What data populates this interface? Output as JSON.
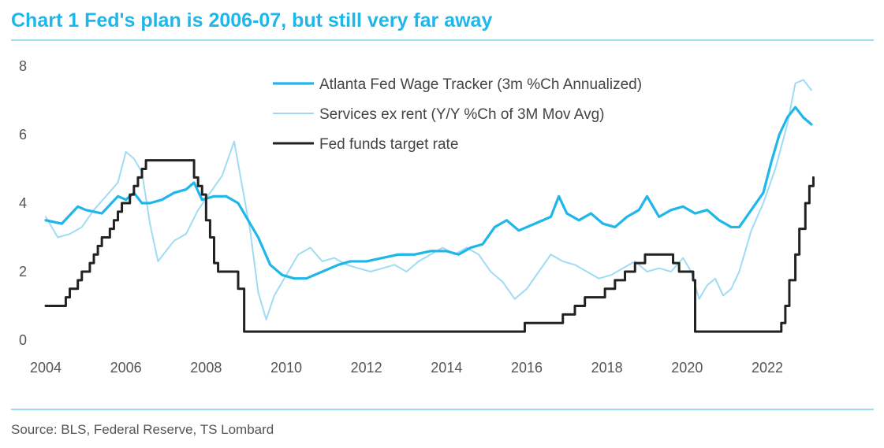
{
  "title": "Chart 1 Fed's plan is 2006-07, but still very far away",
  "source": "Source: BLS, Federal Reserve, TS Lombard",
  "colors": {
    "accent": "#1fb6ea",
    "wage": "#1fb6ea",
    "services": "#9fdcf3",
    "fed": "#222222"
  },
  "chart_data": {
    "type": "line",
    "title": "Chart 1 Fed's plan is 2006-07, but still very far away",
    "xlabel": "",
    "ylabel": "",
    "xlim": [
      2004,
      2023.2
    ],
    "ylim": [
      0,
      8
    ],
    "grid": false,
    "legend_position": "top-center",
    "x_ticks": [
      2004,
      2006,
      2008,
      2010,
      2012,
      2014,
      2016,
      2018,
      2020,
      2022
    ],
    "x_tick_labels": [
      "2004",
      "2006",
      "2008",
      "2010",
      "2012",
      "2014",
      "2016",
      "2018",
      "2020",
      "2022"
    ],
    "y_ticks": [
      0,
      2,
      4,
      6,
      8
    ],
    "y_tick_labels": [
      "0",
      "2",
      "4",
      "6",
      "8"
    ],
    "series": [
      {
        "name": "Atlanta Fed Wage Tracker (3m %Ch Annualized)",
        "color": "#1fb6ea",
        "style": "thick",
        "x": [
          2004.0,
          2004.4,
          2004.8,
          2005.0,
          2005.4,
          2005.8,
          2006.0,
          2006.2,
          2006.4,
          2006.6,
          2006.9,
          2007.2,
          2007.5,
          2007.7,
          2007.9,
          2008.2,
          2008.5,
          2008.8,
          2009.0,
          2009.3,
          2009.6,
          2009.9,
          2010.2,
          2010.5,
          2010.9,
          2011.3,
          2011.6,
          2012.0,
          2012.4,
          2012.8,
          2013.2,
          2013.6,
          2014.0,
          2014.3,
          2014.6,
          2014.9,
          2015.2,
          2015.5,
          2015.8,
          2016.2,
          2016.6,
          2016.8,
          2017.0,
          2017.3,
          2017.6,
          2017.9,
          2018.2,
          2018.5,
          2018.8,
          2019.0,
          2019.3,
          2019.6,
          2019.9,
          2020.2,
          2020.5,
          2020.8,
          2021.1,
          2021.3,
          2021.6,
          2021.9,
          2022.1,
          2022.3,
          2022.5,
          2022.7,
          2022.9,
          2023.1
        ],
        "values": [
          3.5,
          3.4,
          3.9,
          3.8,
          3.7,
          4.2,
          4.1,
          4.3,
          4.0,
          4.0,
          4.1,
          4.3,
          4.4,
          4.6,
          4.1,
          4.2,
          4.2,
          4.0,
          3.6,
          3.0,
          2.2,
          1.9,
          1.8,
          1.8,
          2.0,
          2.2,
          2.3,
          2.3,
          2.4,
          2.5,
          2.5,
          2.6,
          2.6,
          2.5,
          2.7,
          2.8,
          3.3,
          3.5,
          3.2,
          3.4,
          3.6,
          4.2,
          3.7,
          3.5,
          3.7,
          3.4,
          3.3,
          3.6,
          3.8,
          4.2,
          3.6,
          3.8,
          3.9,
          3.7,
          3.8,
          3.5,
          3.3,
          3.3,
          3.8,
          4.3,
          5.2,
          6.0,
          6.5,
          6.8,
          6.5,
          6.3
        ]
      },
      {
        "name": "Services ex rent (Y/Y %Ch of 3M Mov Avg)",
        "color": "#9fdcf3",
        "style": "thin",
        "x": [
          2004.0,
          2004.3,
          2004.6,
          2004.9,
          2005.2,
          2005.5,
          2005.8,
          2006.0,
          2006.2,
          2006.4,
          2006.6,
          2006.8,
          2007.0,
          2007.2,
          2007.5,
          2007.8,
          2008.1,
          2008.4,
          2008.7,
          2008.9,
          2009.1,
          2009.3,
          2009.5,
          2009.7,
          2010.0,
          2010.3,
          2010.6,
          2010.9,
          2011.2,
          2011.5,
          2011.8,
          2012.1,
          2012.4,
          2012.7,
          2013.0,
          2013.3,
          2013.6,
          2013.9,
          2014.2,
          2014.5,
          2014.8,
          2015.1,
          2015.4,
          2015.7,
          2016.0,
          2016.3,
          2016.6,
          2016.9,
          2017.2,
          2017.5,
          2017.8,
          2018.1,
          2018.4,
          2018.7,
          2019.0,
          2019.3,
          2019.6,
          2019.9,
          2020.1,
          2020.3,
          2020.5,
          2020.7,
          2020.9,
          2021.1,
          2021.3,
          2021.6,
          2021.9,
          2022.2,
          2022.5,
          2022.7,
          2022.9,
          2023.1
        ],
        "values": [
          3.6,
          3.0,
          3.1,
          3.3,
          3.8,
          4.2,
          4.6,
          5.5,
          5.3,
          4.9,
          3.4,
          2.3,
          2.6,
          2.9,
          3.1,
          3.8,
          4.3,
          4.8,
          5.8,
          4.5,
          3.2,
          1.4,
          0.6,
          1.3,
          1.9,
          2.5,
          2.7,
          2.3,
          2.4,
          2.2,
          2.1,
          2.0,
          2.1,
          2.2,
          2.0,
          2.3,
          2.5,
          2.7,
          2.5,
          2.7,
          2.5,
          2.0,
          1.7,
          1.2,
          1.5,
          2.0,
          2.5,
          2.3,
          2.2,
          2.0,
          1.8,
          1.9,
          2.1,
          2.3,
          2.0,
          2.1,
          2.0,
          2.4,
          2.0,
          1.2,
          1.6,
          1.8,
          1.3,
          1.5,
          2.0,
          3.2,
          4.0,
          5.0,
          6.3,
          7.5,
          7.6,
          7.3
        ]
      },
      {
        "name": "Fed funds target rate",
        "color": "#222222",
        "style": "step",
        "x": [
          2004.0,
          2004.5,
          2004.6,
          2004.8,
          2004.9,
          2005.1,
          2005.2,
          2005.3,
          2005.4,
          2005.6,
          2005.7,
          2005.8,
          2005.9,
          2006.1,
          2006.2,
          2006.3,
          2006.4,
          2006.5,
          2007.6,
          2007.7,
          2007.8,
          2007.9,
          2008.0,
          2008.1,
          2008.2,
          2008.3,
          2008.7,
          2008.8,
          2008.95,
          2015.95,
          2016.9,
          2017.2,
          2017.45,
          2017.95,
          2018.2,
          2018.45,
          2018.7,
          2018.95,
          2019.55,
          2019.65,
          2019.8,
          2020.15,
          2020.2,
          2022.2,
          2022.35,
          2022.45,
          2022.55,
          2022.7,
          2022.8,
          2022.95,
          2023.05,
          2023.15
        ],
        "values": [
          1.0,
          1.25,
          1.5,
          1.75,
          2.0,
          2.25,
          2.5,
          2.75,
          3.0,
          3.25,
          3.5,
          3.75,
          4.0,
          4.25,
          4.5,
          4.75,
          5.0,
          5.25,
          5.25,
          4.75,
          4.5,
          4.25,
          3.5,
          3.0,
          2.25,
          2.0,
          2.0,
          1.5,
          0.25,
          0.5,
          0.75,
          1.0,
          1.25,
          1.5,
          1.75,
          2.0,
          2.25,
          2.5,
          2.5,
          2.25,
          2.0,
          1.75,
          0.25,
          0.25,
          0.5,
          1.0,
          1.75,
          2.5,
          3.25,
          4.0,
          4.5,
          4.75
        ]
      }
    ]
  }
}
